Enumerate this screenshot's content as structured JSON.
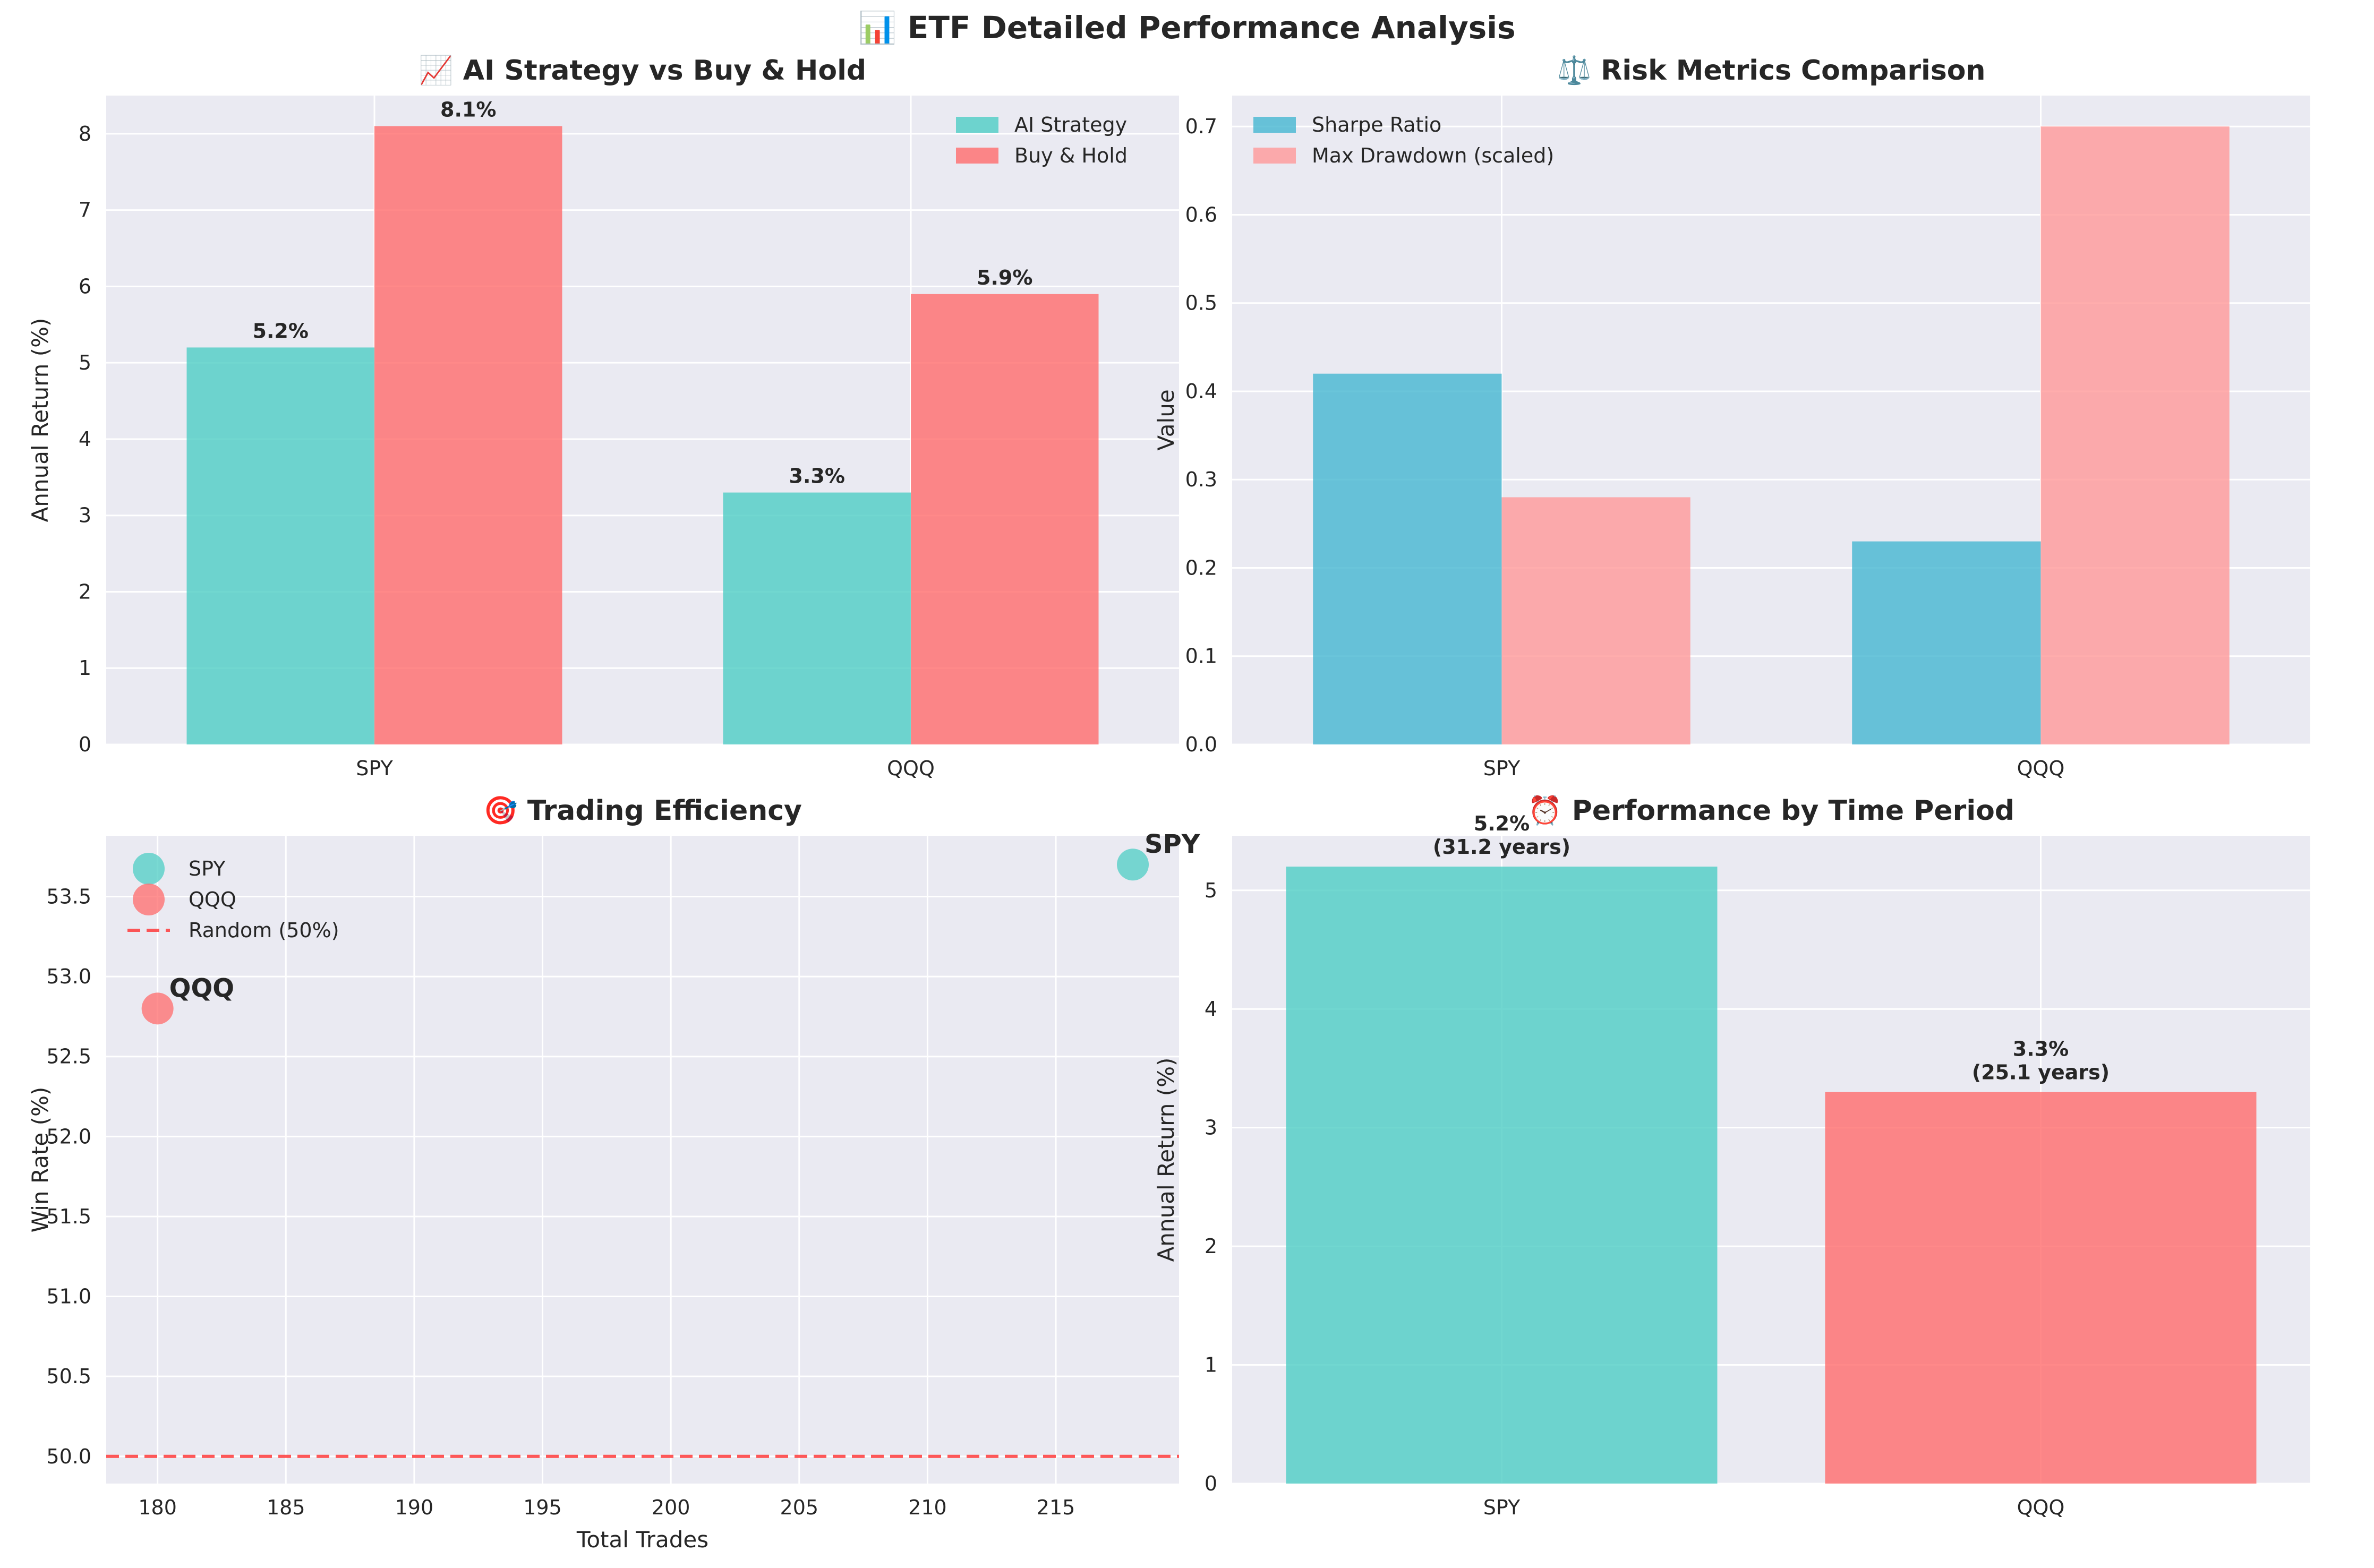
{
  "figure": {
    "title": "📊 ETF Detailed Performance Analysis",
    "background": "#ffffff",
    "axes_bg": "#eaeaf2",
    "grid_color": "#ffffff"
  },
  "chart_data": [
    {
      "id": "returns",
      "type": "bar",
      "title": "📈 AI Strategy vs Buy & Hold",
      "xlabel": "",
      "ylabel": "Annual Return (%)",
      "categories": [
        "SPY",
        "QQQ"
      ],
      "ylim": [
        0,
        8.5
      ],
      "yticks": [
        0,
        1,
        2,
        3,
        4,
        5,
        6,
        7,
        8
      ],
      "legend": "top-right",
      "series": [
        {
          "name": "AI Strategy",
          "values": [
            5.2,
            3.3
          ],
          "color": "#4ecdc4",
          "labels": [
            "5.2%",
            "3.3%"
          ]
        },
        {
          "name": "Buy & Hold",
          "values": [
            8.1,
            5.9
          ],
          "color": "#ff6b6b",
          "labels": [
            "8.1%",
            "5.9%"
          ]
        }
      ]
    },
    {
      "id": "risk",
      "type": "bar",
      "title": "⚖️ Risk Metrics Comparison",
      "xlabel": "",
      "ylabel": "Value",
      "categories": [
        "SPY",
        "QQQ"
      ],
      "ylim": [
        0,
        0.735
      ],
      "yticks": [
        0.0,
        0.1,
        0.2,
        0.3,
        0.4,
        0.5,
        0.6,
        0.7
      ],
      "ytick_labels": [
        "0.0",
        "0.1",
        "0.2",
        "0.3",
        "0.4",
        "0.5",
        "0.6",
        "0.7"
      ],
      "legend": "top-left",
      "series": [
        {
          "name": "Sharpe Ratio",
          "values": [
            0.42,
            0.23
          ],
          "color": "#45b7d1"
        },
        {
          "name": "Max Drawdown (scaled)",
          "values": [
            0.28,
            0.7
          ],
          "color": "#ff9999"
        }
      ]
    },
    {
      "id": "efficiency",
      "type": "scatter",
      "title": "🎯 Trading Efficiency",
      "xlabel": "Total Trades",
      "ylabel": "Win Rate (%)",
      "xlim": [
        178,
        219.8
      ],
      "ylim": [
        49.83,
        53.88
      ],
      "xticks": [
        180,
        185,
        190,
        195,
        200,
        205,
        210,
        215
      ],
      "yticks": [
        50.0,
        50.5,
        51.0,
        51.5,
        52.0,
        52.5,
        53.0,
        53.5
      ],
      "ytick_labels": [
        "50.0",
        "50.5",
        "51.0",
        "51.5",
        "52.0",
        "52.5",
        "53.0",
        "53.5"
      ],
      "legend": "top-left",
      "series": [
        {
          "name": "SPY",
          "x": 218,
          "y": 53.7,
          "color": "#4ecdc4",
          "label": "SPY"
        },
        {
          "name": "QQQ",
          "x": 180,
          "y": 52.8,
          "color": "#ff6b6b",
          "label": "QQQ"
        }
      ],
      "reference_line": {
        "name": "Random (50%)",
        "y": 50.0,
        "color": "#ff3b3b"
      }
    },
    {
      "id": "period",
      "type": "bar",
      "title": "⏰ Performance by Time Period",
      "xlabel": "",
      "ylabel": "Annual Return (%)",
      "categories": [
        "SPY",
        "QQQ"
      ],
      "ylim": [
        0,
        5.46
      ],
      "yticks": [
        0,
        1,
        2,
        3,
        4,
        5
      ],
      "values": [
        5.2,
        3.3
      ],
      "colors": [
        "#4ecdc4",
        "#ff6b6b"
      ],
      "labels": [
        [
          "5.2%",
          "(31.2 years)"
        ],
        [
          "3.3%",
          "(25.1 years)"
        ]
      ]
    }
  ]
}
